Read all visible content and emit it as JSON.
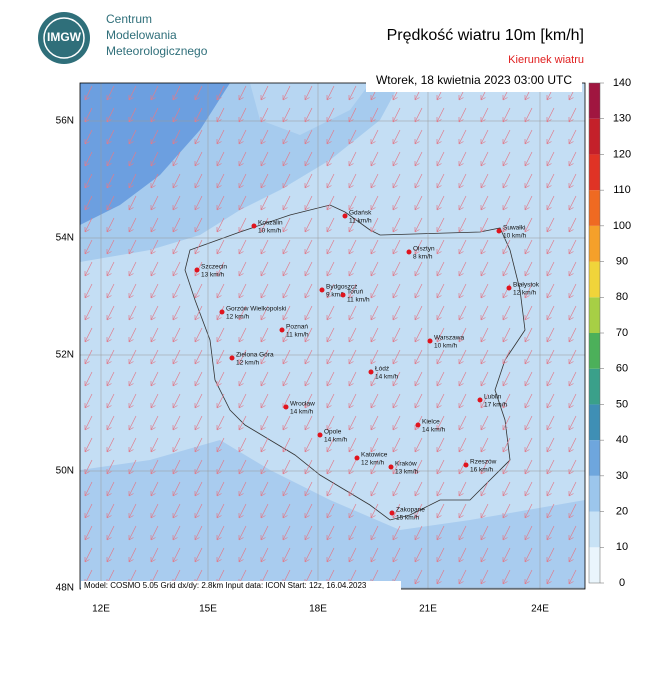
{
  "header": {
    "logo": "IMGW",
    "org": [
      "Centrum",
      "Modelowania",
      "Meteorologicznego"
    ],
    "title": "Prędkość wiatru 10m [km/h]",
    "subtitle": "Kierunek wiatru",
    "date": "Wtorek, 18 kwietnia 2023 03:00 UTC"
  },
  "map": {
    "lat_labels": [
      "56N",
      "54N",
      "52N",
      "50N",
      "48N"
    ],
    "lon_labels": [
      "12E",
      "15E",
      "18E",
      "21E",
      "24E"
    ],
    "cities": [
      {
        "name": "Koszalin",
        "speed": "10 km/h"
      },
      {
        "name": "Gdańsk",
        "speed": "11 km/h"
      },
      {
        "name": "Suwałki",
        "speed": "10 km/h"
      },
      {
        "name": "Olsztyn",
        "speed": "8 km/h"
      },
      {
        "name": "Szczecin",
        "speed": "13 km/h"
      },
      {
        "name": "Bydgoszcz",
        "speed": "9 km/h"
      },
      {
        "name": "Toruń",
        "speed": "11 km/h"
      },
      {
        "name": "Białystok",
        "speed": "12 km/h"
      },
      {
        "name": "Gorzów Wielkopolski",
        "speed": "12 km/h"
      },
      {
        "name": "Poznań",
        "speed": "11 km/h"
      },
      {
        "name": "Warszawa",
        "speed": "10 km/h"
      },
      {
        "name": "Zielona Góra",
        "speed": "12 km/h"
      },
      {
        "name": "Łódź",
        "speed": "14 km/h"
      },
      {
        "name": "Lublin",
        "speed": "17 km/h"
      },
      {
        "name": "Wrocław",
        "speed": "14 km/h"
      },
      {
        "name": "Kielce",
        "speed": "14 km/h"
      },
      {
        "name": "Opole",
        "speed": "14 km/h"
      },
      {
        "name": "Katowice",
        "speed": "12 km/h"
      },
      {
        "name": "Rzeszów",
        "speed": "16 km/h"
      },
      {
        "name": "Kraków",
        "speed": "13 km/h"
      },
      {
        "name": "Zakopane",
        "speed": "15 km/h"
      }
    ],
    "footer": "Model: COSMO 5.05  Grid dx/dy: 2.8km  Input data: ICON  Start: 12z, 16.04.2023"
  },
  "colorbar": {
    "ticks": [
      0,
      10,
      20,
      30,
      40,
      50,
      60,
      70,
      80,
      90,
      100,
      110,
      120,
      130,
      140
    ],
    "colors": [
      "#eaf5fc",
      "#c8e2f5",
      "#9cc6ec",
      "#6ea6dd",
      "#3f8fb5",
      "#3aa08a",
      "#4cb05a",
      "#a7cf45",
      "#f0d43a",
      "#f5a02a",
      "#ef6a22",
      "#e03325",
      "#c4202a",
      "#a01640"
    ]
  }
}
